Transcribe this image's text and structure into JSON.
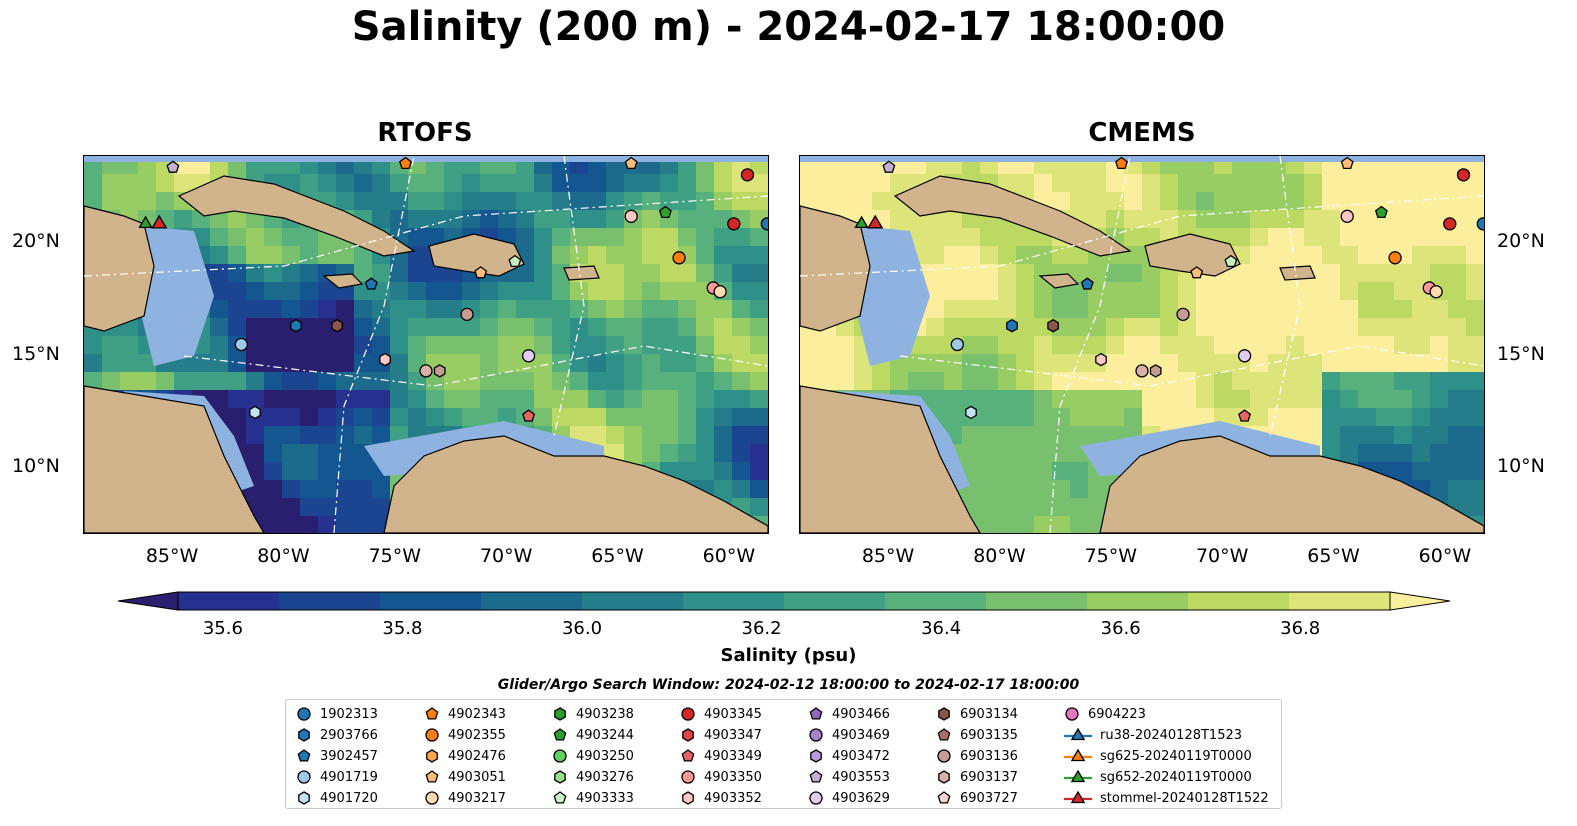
{
  "title": "Salinity (200 m) - 2024-02-17 18:00:00",
  "colors": {
    "land": "#d2b48c",
    "shelf": "#8fb3e0",
    "colormap": [
      "#2a1e6e",
      "#25308f",
      "#1b4591",
      "#14568f",
      "#1c6a8c",
      "#267d8a",
      "#2e9088",
      "#3fa083",
      "#57b17c",
      "#78c06e",
      "#98cd63",
      "#bcd964",
      "#dde47a",
      "#fbee9c"
    ]
  },
  "chart_data": [
    {
      "type": "heatmap",
      "title": "RTOFS",
      "x_ticks": [
        "85°W",
        "80°W",
        "75°W",
        "70°W",
        "65°W",
        "60°W"
      ],
      "y_ticks": [
        "20°N",
        "15°N",
        "10°N"
      ],
      "xlim": [
        -89,
        -58.2
      ],
      "ylim": [
        7,
        23.9
      ]
    },
    {
      "type": "heatmap",
      "title": "CMEMS",
      "x_ticks": [
        "85°W",
        "80°W",
        "75°W",
        "70°W",
        "65°W",
        "60°W"
      ],
      "y_ticks": [
        "20°N",
        "15°N",
        "10°N"
      ],
      "xlim": [
        -89,
        -58.2
      ],
      "ylim": [
        7,
        23.9
      ]
    }
  ],
  "colorbar": {
    "label": "Salinity (psu)",
    "ticks": [
      35.6,
      35.8,
      36.0,
      36.2,
      36.4,
      36.6,
      36.8
    ],
    "tick_labels": [
      "35.6",
      "35.8",
      "36.0",
      "36.2",
      "36.4",
      "36.6",
      "36.8"
    ],
    "min": 35.55,
    "max": 36.9,
    "step": 0.1
  },
  "legend": {
    "title": "Glider/Argo Search Window: 2024-02-12 18:00:00 to 2024-02-17 18:00:00",
    "columns": [
      [
        {
          "label": "1902313",
          "marker": "circle",
          "color": "#1f77b4"
        },
        {
          "label": "2903766",
          "marker": "hexagon",
          "color": "#1f77b4"
        },
        {
          "label": "3902457",
          "marker": "pentagon",
          "color": "#1f77b4"
        },
        {
          "label": "4901719",
          "marker": "circle",
          "color": "#9ecae9"
        },
        {
          "label": "4901720",
          "marker": "hexagon",
          "color": "#c6e1f2"
        }
      ],
      [
        {
          "label": "4902343",
          "marker": "pentagon",
          "color": "#ff7f0e"
        },
        {
          "label": "4902355",
          "marker": "circle",
          "color": "#ff7f0e"
        },
        {
          "label": "4902476",
          "marker": "hexagon",
          "color": "#ffa54d"
        },
        {
          "label": "4903051",
          "marker": "pentagon",
          "color": "#ffbb78"
        },
        {
          "label": "4903217",
          "marker": "circle",
          "color": "#ffd9b0"
        }
      ],
      [
        {
          "label": "4903238",
          "marker": "hexagon",
          "color": "#2ca02c"
        },
        {
          "label": "4903244",
          "marker": "pentagon",
          "color": "#2ca02c"
        },
        {
          "label": "4903250",
          "marker": "circle",
          "color": "#5fd15f"
        },
        {
          "label": "4903276",
          "marker": "hexagon",
          "color": "#98df8a"
        },
        {
          "label": "4903333",
          "marker": "pentagon",
          "color": "#c9f0c0"
        }
      ],
      [
        {
          "label": "4903345",
          "marker": "circle",
          "color": "#d62728"
        },
        {
          "label": "4903347",
          "marker": "hexagon",
          "color": "#e0474a"
        },
        {
          "label": "4903349",
          "marker": "pentagon",
          "color": "#e86464"
        },
        {
          "label": "4903350",
          "marker": "circle",
          "color": "#ff9896"
        },
        {
          "label": "4903352",
          "marker": "hexagon",
          "color": "#ffc6c4"
        }
      ],
      [
        {
          "label": "4903466",
          "marker": "pentagon",
          "color": "#9467bd"
        },
        {
          "label": "4903469",
          "marker": "circle",
          "color": "#a982cf"
        },
        {
          "label": "4903472",
          "marker": "hexagon",
          "color": "#bb9ad9"
        },
        {
          "label": "4903553",
          "marker": "pentagon",
          "color": "#c5b0d5"
        },
        {
          "label": "4903629",
          "marker": "circle",
          "color": "#e2cdf0"
        }
      ],
      [
        {
          "label": "6903134",
          "marker": "hexagon",
          "color": "#8c564b"
        },
        {
          "label": "6903135",
          "marker": "pentagon",
          "color": "#a8716a"
        },
        {
          "label": "6903136",
          "marker": "circle",
          "color": "#c49c94"
        },
        {
          "label": "6903137",
          "marker": "hexagon",
          "color": "#dbb0a8"
        },
        {
          "label": "6903727",
          "marker": "pentagon",
          "color": "#f2d4cd"
        }
      ],
      [
        {
          "label": "6904223",
          "marker": "circle",
          "color": "#e377c2"
        },
        {
          "label": "ru38-20240128T1523",
          "marker": "triangle-line",
          "color": "#1f77b4"
        },
        {
          "label": "sg625-20240119T0000",
          "marker": "triangle-line",
          "color": "#ff7f0e"
        },
        {
          "label": "sg652-20240119T0000",
          "marker": "triangle-line",
          "color": "#2ca02c"
        },
        {
          "label": "stommel-20240128T1522",
          "marker": "triangle-line",
          "color": "#d62728"
        }
      ]
    ]
  }
}
